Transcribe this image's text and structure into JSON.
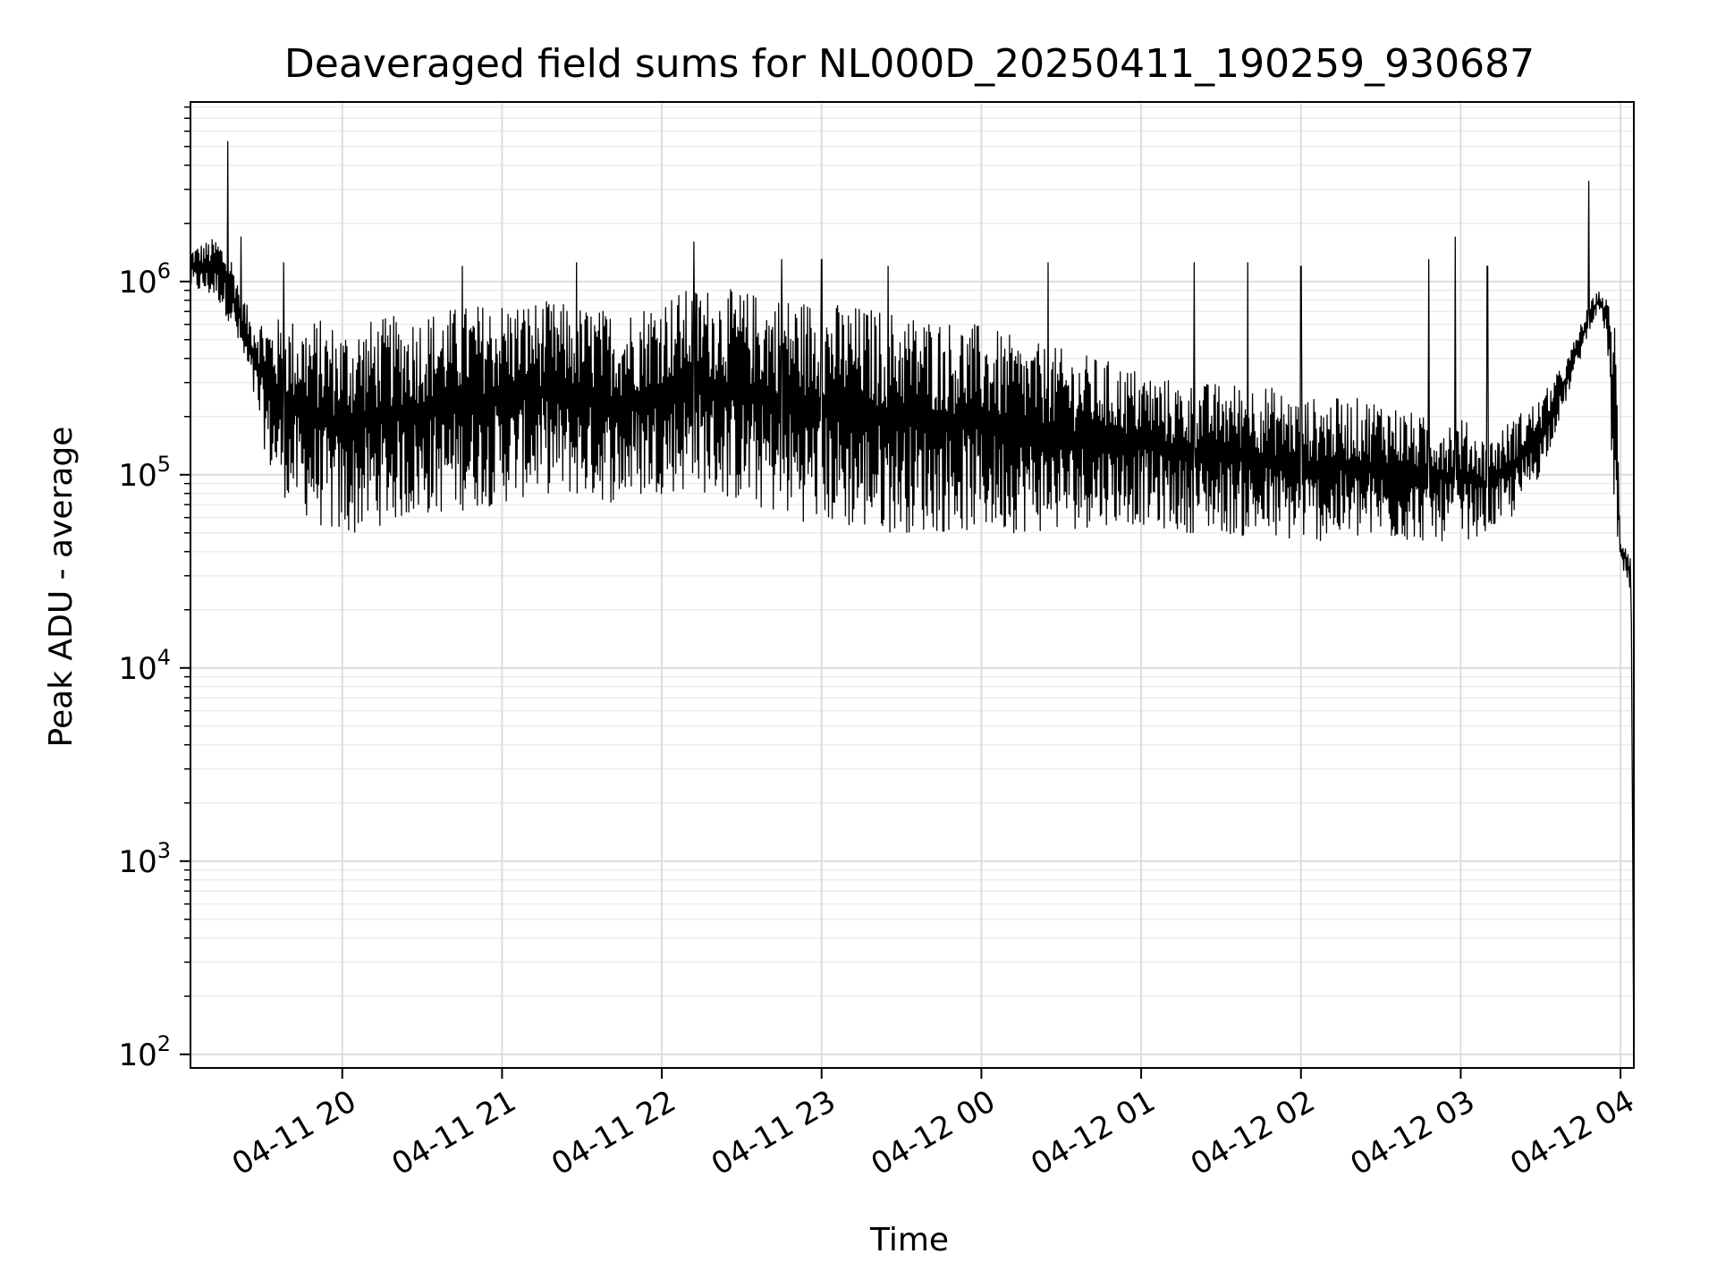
{
  "chart_data": {
    "type": "line",
    "title": "Deaveraged field sums for NL000D_20250411_190259_930687",
    "xlabel": "Time",
    "ylabel": "Peak ADU - average",
    "xlim": [
      "2025-04-11 19:03",
      "2025-04-12 04:05"
    ],
    "ylim": [
      85,
      8500000
    ],
    "yscale": "log",
    "grid": true,
    "line_color": "#000000",
    "x_ticks": [
      {
        "label": "04-11 20",
        "t": "2025-04-11 20:00"
      },
      {
        "label": "04-11 21",
        "t": "2025-04-11 21:00"
      },
      {
        "label": "04-11 22",
        "t": "2025-04-11 22:00"
      },
      {
        "label": "04-11 23",
        "t": "2025-04-11 23:00"
      },
      {
        "label": "04-12 00",
        "t": "2025-04-12 00:00"
      },
      {
        "label": "04-12 01",
        "t": "2025-04-12 01:00"
      },
      {
        "label": "04-12 02",
        "t": "2025-04-12 02:00"
      },
      {
        "label": "04-12 03",
        "t": "2025-04-12 03:00"
      },
      {
        "label": "04-12 04",
        "t": "2025-04-12 04:00"
      }
    ],
    "y_ticks": [
      {
        "base": "10",
        "exp": "2",
        "value": 100
      },
      {
        "base": "10",
        "exp": "3",
        "value": 1000
      },
      {
        "base": "10",
        "exp": "4",
        "value": 10000
      },
      {
        "base": "10",
        "exp": "5",
        "value": 100000
      },
      {
        "base": "10",
        "exp": "6",
        "value": 1000000
      }
    ],
    "series": [
      {
        "envelope": {
          "t": [
            "2025-04-11 19:03",
            "2025-04-11 19:08",
            "2025-04-11 19:13",
            "2025-04-11 19:18",
            "2025-04-11 19:25",
            "2025-04-11 19:33",
            "2025-04-11 19:40",
            "2025-04-11 19:50",
            "2025-04-11 20:00",
            "2025-04-11 20:15",
            "2025-04-11 20:30",
            "2025-04-11 20:45",
            "2025-04-11 21:00",
            "2025-04-11 21:15",
            "2025-04-11 21:30",
            "2025-04-11 21:45",
            "2025-04-11 22:00",
            "2025-04-11 22:15",
            "2025-04-11 22:30",
            "2025-04-11 22:45",
            "2025-04-11 23:00",
            "2025-04-11 23:15",
            "2025-04-11 23:30",
            "2025-04-11 23:45",
            "2025-04-12 00:00",
            "2025-04-12 00:15",
            "2025-04-12 00:30",
            "2025-04-12 00:45",
            "2025-04-12 01:00",
            "2025-04-12 01:15",
            "2025-04-12 01:30",
            "2025-04-12 01:45",
            "2025-04-12 02:00",
            "2025-04-12 02:15",
            "2025-04-12 02:30",
            "2025-04-12 02:45",
            "2025-04-12 03:00",
            "2025-04-12 03:10",
            "2025-04-12 03:20",
            "2025-04-12 03:30",
            "2025-04-12 03:40",
            "2025-04-12 03:45",
            "2025-04-12 03:49",
            "2025-04-12 03:52",
            "2025-04-12 03:55",
            "2025-04-12 03:58",
            "2025-04-12 04:00",
            "2025-04-12 04:02",
            "2025-04-12 04:04",
            "2025-04-12 04:05"
          ],
          "upper": [
            1500000,
            1600000,
            1700000,
            1400000,
            700000,
            650000,
            650000,
            650000,
            600000,
            650000,
            700000,
            750000,
            800000,
            800000,
            750000,
            700000,
            850000,
            950000,
            900000,
            850000,
            800000,
            750000,
            700000,
            650000,
            600000,
            500000,
            450000,
            400000,
            350000,
            300000,
            300000,
            300000,
            250000,
            250000,
            250000,
            200000,
            200000,
            150000,
            200000,
            250000,
            400000,
            600000,
            800000,
            900000,
            800000,
            700000,
            50000,
            45000,
            40000,
            90
          ],
          "lower": [
            900000,
            850000,
            800000,
            600000,
            300000,
            100000,
            70000,
            55000,
            45000,
            55000,
            60000,
            65000,
            70000,
            80000,
            75000,
            70000,
            80000,
            80000,
            70000,
            60000,
            55000,
            50000,
            50000,
            50000,
            50000,
            50000,
            50000,
            55000,
            55000,
            50000,
            50000,
            45000,
            45000,
            45000,
            45000,
            45000,
            45000,
            50000,
            60000,
            100000,
            250000,
            400000,
            600000,
            700000,
            500000,
            40000,
            30000,
            30000,
            20000,
            90
          ]
        },
        "spikes": [
          {
            "t": "2025-04-11 19:17",
            "value": 5300000
          },
          {
            "t": "2025-04-11 19:22",
            "value": 1700000
          },
          {
            "t": "2025-04-11 19:38",
            "value": 1250000
          },
          {
            "t": "2025-04-11 20:45",
            "value": 1200000
          },
          {
            "t": "2025-04-11 21:28",
            "value": 1250000
          },
          {
            "t": "2025-04-11 22:12",
            "value": 1600000
          },
          {
            "t": "2025-04-11 22:45",
            "value": 1300000
          },
          {
            "t": "2025-04-11 23:00",
            "value": 1300000
          },
          {
            "t": "2025-04-11 23:25",
            "value": 1200000
          },
          {
            "t": "2025-04-12 00:25",
            "value": 1250000
          },
          {
            "t": "2025-04-12 01:20",
            "value": 1250000
          },
          {
            "t": "2025-04-12 01:40",
            "value": 1250000
          },
          {
            "t": "2025-04-12 02:00",
            "value": 1200000
          },
          {
            "t": "2025-04-12 02:48",
            "value": 1300000
          },
          {
            "t": "2025-04-12 02:58",
            "value": 1700000
          },
          {
            "t": "2025-04-12 03:10",
            "value": 1200000
          },
          {
            "t": "2025-04-12 03:48",
            "value": 3300000
          }
        ]
      }
    ]
  }
}
